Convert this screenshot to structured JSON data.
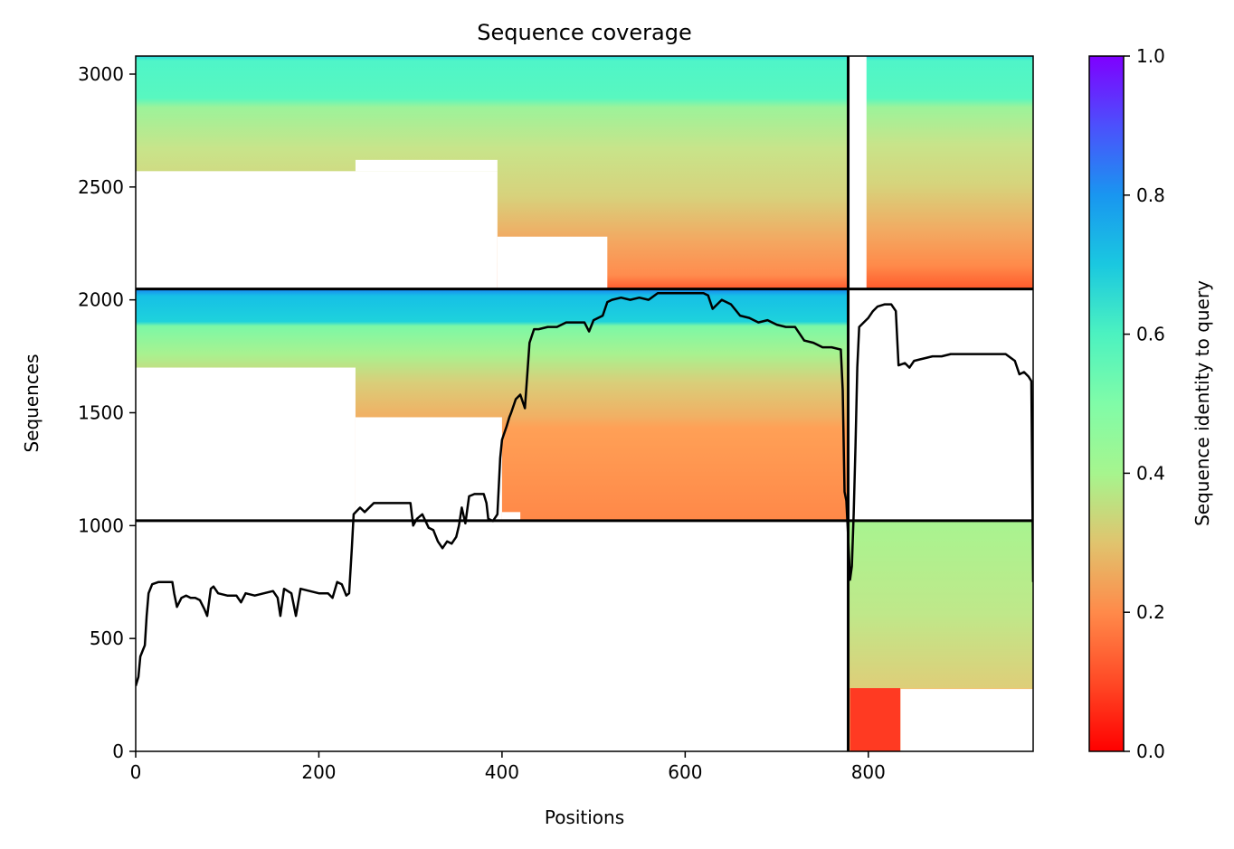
{
  "chart_data": {
    "type": "heatmap",
    "title": "Sequence coverage",
    "xlabel": "Positions",
    "ylabel": "Sequences",
    "xlim": [
      0,
      980
    ],
    "ylim": [
      0,
      3080
    ],
    "xticks": [
      0,
      200,
      400,
      600,
      800
    ],
    "yticks": [
      0,
      500,
      1000,
      1500,
      2000,
      2500,
      3000
    ],
    "colorbar": {
      "label": "Sequence identity to query",
      "range": [
        0.0,
        1.0
      ],
      "ticks": [
        0.0,
        0.2,
        0.4,
        0.6,
        0.8,
        1.0
      ],
      "ticks_text": [
        "0.0",
        "0.2",
        "0.4",
        "0.6",
        "0.8",
        "1.0"
      ],
      "colormap": "rainbow_r"
    },
    "xticks_text": [
      "0",
      "200",
      "400",
      "600",
      "800"
    ],
    "yticks_text": [
      "0",
      "500",
      "1000",
      "1500",
      "2000",
      "2500",
      "3000"
    ],
    "divider_lines": {
      "horizontal_y": [
        1022,
        2048
      ],
      "vertical_x": [
        778
      ]
    },
    "coverage_blocks": [
      {
        "block": "top-left",
        "x": [
          0,
          778
        ],
        "y": [
          2048,
          3080
        ]
      },
      {
        "block": "top-right",
        "x": [
          798,
          980
        ],
        "y": [
          2048,
          3080
        ]
      },
      {
        "block": "middle-left",
        "x": [
          0,
          778
        ],
        "y": [
          1022,
          2048
        ]
      },
      {
        "block": "bottom-right",
        "x": [
          778,
          980
        ],
        "y": [
          0,
          1022
        ]
      }
    ],
    "coverage_line": {
      "color": "#000000",
      "points": [
        [
          0,
          290
        ],
        [
          3,
          330
        ],
        [
          5,
          420
        ],
        [
          8,
          450
        ],
        [
          10,
          470
        ],
        [
          12,
          600
        ],
        [
          14,
          700
        ],
        [
          18,
          740
        ],
        [
          25,
          750
        ],
        [
          40,
          750
        ],
        [
          42,
          700
        ],
        [
          45,
          640
        ],
        [
          50,
          680
        ],
        [
          55,
          690
        ],
        [
          60,
          680
        ],
        [
          65,
          680
        ],
        [
          70,
          670
        ],
        [
          75,
          630
        ],
        [
          78,
          600
        ],
        [
          82,
          720
        ],
        [
          85,
          730
        ],
        [
          90,
          700
        ],
        [
          100,
          690
        ],
        [
          110,
          690
        ],
        [
          115,
          660
        ],
        [
          120,
          700
        ],
        [
          130,
          690
        ],
        [
          140,
          700
        ],
        [
          150,
          710
        ],
        [
          155,
          680
        ],
        [
          158,
          600
        ],
        [
          162,
          720
        ],
        [
          170,
          700
        ],
        [
          175,
          600
        ],
        [
          180,
          720
        ],
        [
          190,
          710
        ],
        [
          200,
          700
        ],
        [
          210,
          700
        ],
        [
          215,
          680
        ],
        [
          220,
          750
        ],
        [
          225,
          740
        ],
        [
          230,
          690
        ],
        [
          233,
          700
        ],
        [
          236,
          900
        ],
        [
          238,
          1050
        ],
        [
          245,
          1080
        ],
        [
          250,
          1060
        ],
        [
          260,
          1100
        ],
        [
          270,
          1100
        ],
        [
          280,
          1100
        ],
        [
          300,
          1100
        ],
        [
          303,
          1000
        ],
        [
          307,
          1030
        ],
        [
          313,
          1050
        ],
        [
          320,
          990
        ],
        [
          325,
          980
        ],
        [
          330,
          930
        ],
        [
          335,
          900
        ],
        [
          340,
          930
        ],
        [
          345,
          920
        ],
        [
          350,
          950
        ],
        [
          353,
          1000
        ],
        [
          356,
          1080
        ],
        [
          360,
          1010
        ],
        [
          364,
          1130
        ],
        [
          370,
          1140
        ],
        [
          380,
          1140
        ],
        [
          383,
          1100
        ],
        [
          385,
          1030
        ],
        [
          390,
          1020
        ],
        [
          395,
          1050
        ],
        [
          398,
          1300
        ],
        [
          400,
          1380
        ],
        [
          405,
          1440
        ],
        [
          408,
          1480
        ],
        [
          410,
          1500
        ],
        [
          415,
          1560
        ],
        [
          420,
          1580
        ],
        [
          425,
          1520
        ],
        [
          430,
          1810
        ],
        [
          435,
          1870
        ],
        [
          440,
          1870
        ],
        [
          450,
          1880
        ],
        [
          460,
          1880
        ],
        [
          470,
          1900
        ],
        [
          490,
          1900
        ],
        [
          495,
          1860
        ],
        [
          500,
          1910
        ],
        [
          510,
          1930
        ],
        [
          515,
          1990
        ],
        [
          520,
          2000
        ],
        [
          530,
          2010
        ],
        [
          540,
          2000
        ],
        [
          550,
          2010
        ],
        [
          560,
          2000
        ],
        [
          570,
          2030
        ],
        [
          580,
          2030
        ],
        [
          600,
          2030
        ],
        [
          620,
          2030
        ],
        [
          625,
          2020
        ],
        [
          630,
          1960
        ],
        [
          640,
          2000
        ],
        [
          650,
          1980
        ],
        [
          660,
          1930
        ],
        [
          670,
          1920
        ],
        [
          680,
          1900
        ],
        [
          690,
          1910
        ],
        [
          700,
          1890
        ],
        [
          710,
          1880
        ],
        [
          720,
          1880
        ],
        [
          730,
          1820
        ],
        [
          740,
          1810
        ],
        [
          750,
          1790
        ],
        [
          760,
          1790
        ],
        [
          770,
          1780
        ],
        [
          772,
          1600
        ],
        [
          774,
          1150
        ],
        [
          776,
          1110
        ],
        [
          778,
          950
        ],
        [
          780,
          760
        ],
        [
          782,
          820
        ],
        [
          784,
          1050
        ],
        [
          786,
          1350
        ],
        [
          788,
          1700
        ],
        [
          790,
          1880
        ],
        [
          795,
          1900
        ],
        [
          800,
          1920
        ],
        [
          805,
          1950
        ],
        [
          810,
          1970
        ],
        [
          818,
          1980
        ],
        [
          825,
          1980
        ],
        [
          830,
          1950
        ],
        [
          833,
          1710
        ],
        [
          840,
          1720
        ],
        [
          845,
          1700
        ],
        [
          850,
          1730
        ],
        [
          860,
          1740
        ],
        [
          870,
          1750
        ],
        [
          880,
          1750
        ],
        [
          890,
          1760
        ],
        [
          900,
          1760
        ],
        [
          920,
          1760
        ],
        [
          940,
          1760
        ],
        [
          950,
          1760
        ],
        [
          960,
          1730
        ],
        [
          965,
          1670
        ],
        [
          970,
          1680
        ],
        [
          975,
          1660
        ],
        [
          978,
          1640
        ],
        [
          980,
          750
        ]
      ]
    }
  }
}
